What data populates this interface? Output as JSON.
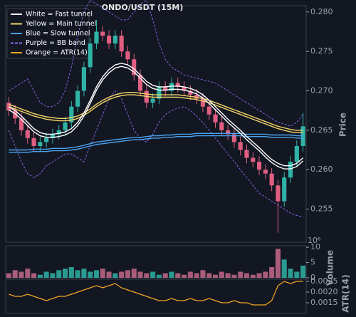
{
  "chart_data": [
    {
      "type": "candlestick",
      "title": "ONDO/USDT (15M)",
      "y_label": "Price",
      "ylim": [
        0.2508,
        0.2808
      ],
      "yticks": [
        0.255,
        {
          "value": 0.26,
          "label": "0.260"
        },
        0.265,
        {
          "value": 0.27,
          "label": "0.270"
        },
        0.275,
        {
          "value": 0.28,
          "label": "0.280"
        }
      ],
      "up_color": "#2fb3a6",
      "down_color": "#e05f80",
      "open": [
        0.2685,
        0.2675,
        0.2665,
        0.265,
        0.264,
        0.263,
        0.2635,
        0.264,
        0.2645,
        0.265,
        0.266,
        0.268,
        0.27,
        0.273,
        0.276,
        0.2775,
        0.277,
        0.276,
        0.277,
        0.275,
        0.274,
        0.272,
        0.27,
        0.2685,
        0.269,
        0.2705,
        0.27,
        0.271,
        0.2705,
        0.27,
        0.2695,
        0.269,
        0.268,
        0.267,
        0.266,
        0.265,
        0.2645,
        0.2635,
        0.2625,
        0.2615,
        0.261,
        0.26,
        0.2595,
        0.258,
        0.256,
        0.259,
        0.261,
        0.263
      ],
      "high": [
        0.2692,
        0.2682,
        0.2672,
        0.2657,
        0.2647,
        0.2642,
        0.2647,
        0.2652,
        0.2657,
        0.2667,
        0.2687,
        0.2707,
        0.2737,
        0.2767,
        0.279,
        0.2782,
        0.2777,
        0.2777,
        0.2777,
        0.2757,
        0.2747,
        0.2727,
        0.2707,
        0.2697,
        0.2712,
        0.2712,
        0.2717,
        0.2717,
        0.2712,
        0.2707,
        0.2702,
        0.2697,
        0.2687,
        0.2677,
        0.2667,
        0.2657,
        0.2652,
        0.2642,
        0.2632,
        0.2622,
        0.2617,
        0.2607,
        0.2602,
        0.2587,
        0.2597,
        0.2617,
        0.2637,
        0.2672
      ],
      "low": [
        0.2668,
        0.2658,
        0.2643,
        0.2633,
        0.2623,
        0.2623,
        0.2628,
        0.2633,
        0.2638,
        0.2643,
        0.2653,
        0.2673,
        0.2693,
        0.2723,
        0.2753,
        0.2763,
        0.2753,
        0.2753,
        0.2743,
        0.2733,
        0.2713,
        0.2693,
        0.2678,
        0.2678,
        0.2683,
        0.2693,
        0.2693,
        0.2698,
        0.2693,
        0.2688,
        0.2683,
        0.2673,
        0.2663,
        0.2653,
        0.2643,
        0.2638,
        0.2628,
        0.2618,
        0.2608,
        0.2603,
        0.2593,
        0.2588,
        0.2573,
        0.252,
        0.2553,
        0.2583,
        0.2603,
        0.2623
      ],
      "close": [
        0.2675,
        0.2665,
        0.265,
        0.264,
        0.263,
        0.2635,
        0.264,
        0.2645,
        0.265,
        0.266,
        0.268,
        0.27,
        0.273,
        0.276,
        0.2775,
        0.277,
        0.276,
        0.277,
        0.275,
        0.274,
        0.272,
        0.27,
        0.2685,
        0.269,
        0.2705,
        0.27,
        0.271,
        0.2705,
        0.27,
        0.2695,
        0.269,
        0.268,
        0.267,
        0.266,
        0.265,
        0.2645,
        0.2635,
        0.2625,
        0.2615,
        0.261,
        0.26,
        0.2595,
        0.258,
        0.256,
        0.259,
        0.261,
        0.263,
        0.2655
      ],
      "series": [
        {
          "color": "#8a6cf0",
          "dashed": true,
          "upper": [
            0.27,
            0.2705,
            0.271,
            0.2715,
            0.27,
            0.2685,
            0.268,
            0.268,
            0.2685,
            0.27,
            0.273,
            0.277,
            0.28,
            0.2815,
            0.281,
            0.2805,
            0.28,
            0.2795,
            0.279,
            0.279,
            0.28,
            0.281,
            0.2815,
            0.279,
            0.276,
            0.274,
            0.273,
            0.2725,
            0.272,
            0.2718,
            0.2716,
            0.2714,
            0.2712,
            0.271,
            0.2705,
            0.27,
            0.2695,
            0.269,
            0.2685,
            0.268,
            0.2675,
            0.267,
            0.2665,
            0.266,
            0.2658,
            0.2655,
            0.266,
            0.267
          ],
          "lower": [
            0.265,
            0.263,
            0.261,
            0.2595,
            0.259,
            0.2595,
            0.2605,
            0.261,
            0.2615,
            0.262,
            0.262,
            0.2615,
            0.261,
            0.263,
            0.265,
            0.267,
            0.269,
            0.27,
            0.269,
            0.267,
            0.265,
            0.264,
            0.2635,
            0.2645,
            0.266,
            0.267,
            0.2675,
            0.2678,
            0.268,
            0.2675,
            0.2668,
            0.266,
            0.265,
            0.264,
            0.263,
            0.262,
            0.261,
            0.26,
            0.259,
            0.258,
            0.257,
            0.2565,
            0.256,
            0.2555,
            0.255,
            0.2545,
            0.2542,
            0.254
          ]
        },
        {
          "color": "#4aa3f0",
          "dashed": false,
          "upper": [
            0.2625,
            0.2625,
            0.2625,
            0.2625,
            0.2626,
            0.2626,
            0.2626,
            0.2627,
            0.2627,
            0.2627,
            0.2628,
            0.2629,
            0.2631,
            0.2633,
            0.2635,
            0.2636,
            0.2637,
            0.2638,
            0.2639,
            0.264,
            0.2641,
            0.2641,
            0.2642,
            0.2643,
            0.2643,
            0.2644,
            0.2644,
            0.2645,
            0.2645,
            0.2645,
            0.2646,
            0.2646,
            0.2646,
            0.2646,
            0.2646,
            0.2646,
            0.2646,
            0.2646,
            0.2645,
            0.2645,
            0.2645,
            0.2645,
            0.2644,
            0.2644,
            0.2644,
            0.2644,
            0.2643,
            0.2643
          ],
          "lower": [
            0.2622,
            0.2622,
            0.2622,
            0.2622,
            0.2623,
            0.2623,
            0.2623,
            0.2624,
            0.2624,
            0.2624,
            0.2625,
            0.2626,
            0.2628,
            0.263,
            0.2632,
            0.2633,
            0.2634,
            0.2635,
            0.2636,
            0.2637,
            0.2638,
            0.2638,
            0.2639,
            0.264,
            0.264,
            0.2641,
            0.2641,
            0.2642,
            0.2642,
            0.2642,
            0.2643,
            0.2643,
            0.2643,
            0.2643,
            0.2643,
            0.2643,
            0.2643,
            0.2643,
            0.2642,
            0.2642,
            0.2642,
            0.2642,
            0.2641,
            0.2641,
            0.2641,
            0.2641,
            0.264,
            0.264
          ]
        },
        {
          "color": "#f5d66a",
          "dashed": false,
          "upper": [
            0.2683,
            0.268,
            0.2677,
            0.2674,
            0.2671,
            0.2669,
            0.2667,
            0.2666,
            0.2665,
            0.2665,
            0.2666,
            0.2668,
            0.2672,
            0.2677,
            0.2683,
            0.2688,
            0.2692,
            0.2695,
            0.2697,
            0.2698,
            0.2698,
            0.2697,
            0.2696,
            0.2695,
            0.2695,
            0.2695,
            0.2695,
            0.2695,
            0.2694,
            0.2693,
            0.2692,
            0.269,
            0.2688,
            0.2685,
            0.2682,
            0.2679,
            0.2676,
            0.2673,
            0.267,
            0.2667,
            0.2664,
            0.2661,
            0.2658,
            0.2655,
            0.2653,
            0.2651,
            0.265,
            0.265
          ],
          "lower": [
            0.268,
            0.2677,
            0.2674,
            0.2671,
            0.2668,
            0.2666,
            0.2664,
            0.2663,
            0.2662,
            0.2662,
            0.2663,
            0.2665,
            0.2669,
            0.2674,
            0.268,
            0.2685,
            0.2689,
            0.2692,
            0.2694,
            0.2695,
            0.2695,
            0.2694,
            0.2693,
            0.2692,
            0.2692,
            0.2692,
            0.2692,
            0.2692,
            0.2691,
            0.269,
            0.2689,
            0.2687,
            0.2685,
            0.2682,
            0.2679,
            0.2676,
            0.2673,
            0.267,
            0.2667,
            0.2664,
            0.2661,
            0.2658,
            0.2655,
            0.2652,
            0.265,
            0.2648,
            0.2647,
            0.2647
          ]
        },
        {
          "color": "#ffffff",
          "dashed": false,
          "upper": [
            0.268,
            0.2675,
            0.2668,
            0.266,
            0.2652,
            0.2647,
            0.2645,
            0.2645,
            0.2646,
            0.2648,
            0.2652,
            0.266,
            0.2672,
            0.2688,
            0.2705,
            0.2718,
            0.2727,
            0.2733,
            0.2735,
            0.2733,
            0.2728,
            0.272,
            0.2712,
            0.2707,
            0.2705,
            0.2705,
            0.2706,
            0.2706,
            0.2705,
            0.2703,
            0.27,
            0.2695,
            0.2688,
            0.268,
            0.2672,
            0.2664,
            0.2657,
            0.265,
            0.2642,
            0.2635,
            0.2628,
            0.262,
            0.2613,
            0.2608,
            0.2605,
            0.2605,
            0.2608,
            0.2615
          ],
          "lower": [
            0.2676,
            0.2671,
            0.2664,
            0.2656,
            0.2648,
            0.2643,
            0.2641,
            0.2641,
            0.2642,
            0.2644,
            0.2648,
            0.2656,
            0.2668,
            0.2684,
            0.2701,
            0.2714,
            0.2723,
            0.2729,
            0.2731,
            0.2729,
            0.2724,
            0.2716,
            0.2708,
            0.2703,
            0.2701,
            0.2701,
            0.2702,
            0.2702,
            0.2701,
            0.2699,
            0.2696,
            0.2691,
            0.2684,
            0.2676,
            0.2668,
            0.266,
            0.2653,
            0.2646,
            0.2638,
            0.2631,
            0.2624,
            0.2616,
            0.2609,
            0.2604,
            0.2601,
            0.2601,
            0.2604,
            0.2611
          ]
        }
      ],
      "legend": [
        {
          "label": "White = Fast tunnel",
          "color": "#ffffff",
          "dashed": false
        },
        {
          "label": "Yellow = Main tunnel",
          "color": "#f5d66a",
          "dashed": false
        },
        {
          "label": "Blue = Slow tunnel",
          "color": "#4aa3f0",
          "dashed": false
        },
        {
          "label": "Purple = BB band",
          "color": "#8a6cf0",
          "dashed": true
        },
        {
          "label": "Orange = ATR(14)",
          "color": "#f5a623",
          "dashed": false
        }
      ]
    },
    {
      "type": "bar",
      "y_label": "Volume",
      "offset_label": "10⁶",
      "ylim": [
        0,
        10.5
      ],
      "yticks": [
        0,
        5,
        10
      ],
      "up_color": "#2fb3a6",
      "down_color": "#c56a8a",
      "values": [
        1.5,
        2.5,
        2,
        3,
        1.5,
        1,
        2,
        1.5,
        2.5,
        3,
        3.5,
        2.5,
        3,
        2,
        2.5,
        3,
        2,
        1.5,
        2,
        2.5,
        3,
        2,
        1.5,
        2,
        1,
        1.5,
        2,
        1.5,
        1,
        2,
        1.5,
        2.5,
        1.5,
        1,
        2,
        1.5,
        1,
        2,
        1.5,
        1,
        1.5,
        2,
        3.5,
        9.5,
        6,
        3,
        2,
        4
      ]
    },
    {
      "type": "line",
      "y_label": "ATR(14)",
      "color": "#f5a623",
      "ylim": [
        0.001,
        0.0026
      ],
      "yticks": [
        0.0015,
        {
          "value": 0.002,
          "label": "0.0020"
        },
        0.0025
      ],
      "values": [
        0.0019,
        0.0018,
        0.0018,
        0.0019,
        0.0018,
        0.0017,
        0.0016,
        0.0017,
        0.0018,
        0.0018,
        0.0019,
        0.002,
        0.0021,
        0.0022,
        0.0023,
        0.0022,
        0.0023,
        0.0024,
        0.0022,
        0.0021,
        0.002,
        0.0019,
        0.0018,
        0.0017,
        0.0016,
        0.0016,
        0.0017,
        0.0016,
        0.0016,
        0.0017,
        0.0016,
        0.0016,
        0.0017,
        0.0016,
        0.0015,
        0.0015,
        0.0016,
        0.0015,
        0.0015,
        0.0014,
        0.0014,
        0.0014,
        0.0016,
        0.0023,
        0.0025,
        0.0024,
        0.0025,
        0.0025
      ]
    }
  ]
}
